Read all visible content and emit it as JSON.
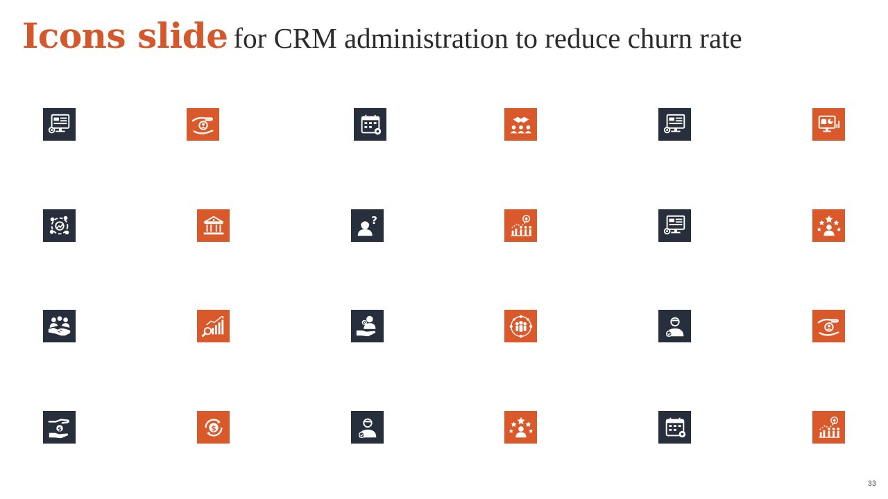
{
  "slide": {
    "title_lead": "Icons slide",
    "title_rest": "for CRM administration to reduce churn rate",
    "page_number": "33"
  },
  "colors": {
    "accent": "#d9592b",
    "dark": "#272f3d",
    "title_accent": "#d4582c"
  },
  "icons": [
    {
      "name": "monitor-document-icon",
      "color": "dark"
    },
    {
      "name": "hand-giving-user-icon",
      "color": "orange"
    },
    {
      "name": "calendar-settings-icon",
      "color": "dark"
    },
    {
      "name": "handshake-team-icon",
      "color": "orange"
    },
    {
      "name": "monitor-document-icon",
      "color": "dark"
    },
    {
      "name": "monitor-analytics-icon",
      "color": "orange"
    },
    {
      "name": "cycle-growth-icon",
      "color": "dark"
    },
    {
      "name": "bank-building-icon",
      "color": "orange"
    },
    {
      "name": "user-question-icon",
      "color": "dark"
    },
    {
      "name": "target-growth-team-icon",
      "color": "orange"
    },
    {
      "name": "monitor-document-icon",
      "color": "dark"
    },
    {
      "name": "star-rating-user-icon",
      "color": "orange"
    },
    {
      "name": "group-handshake-icon",
      "color": "dark"
    },
    {
      "name": "magnify-growth-chart-icon",
      "color": "orange"
    },
    {
      "name": "hand-holding-user-icon",
      "color": "dark"
    },
    {
      "name": "team-network-icon",
      "color": "orange"
    },
    {
      "name": "user-check-icon",
      "color": "dark"
    },
    {
      "name": "hand-giving-user-icon",
      "color": "orange"
    },
    {
      "name": "hand-holding-dollar-icon",
      "color": "dark"
    },
    {
      "name": "dollar-cycle-icon",
      "color": "orange"
    },
    {
      "name": "user-check-icon",
      "color": "dark"
    },
    {
      "name": "star-rating-user-icon",
      "color": "orange"
    },
    {
      "name": "calendar-settings-icon",
      "color": "dark"
    },
    {
      "name": "target-growth-team-icon",
      "color": "orange"
    }
  ]
}
